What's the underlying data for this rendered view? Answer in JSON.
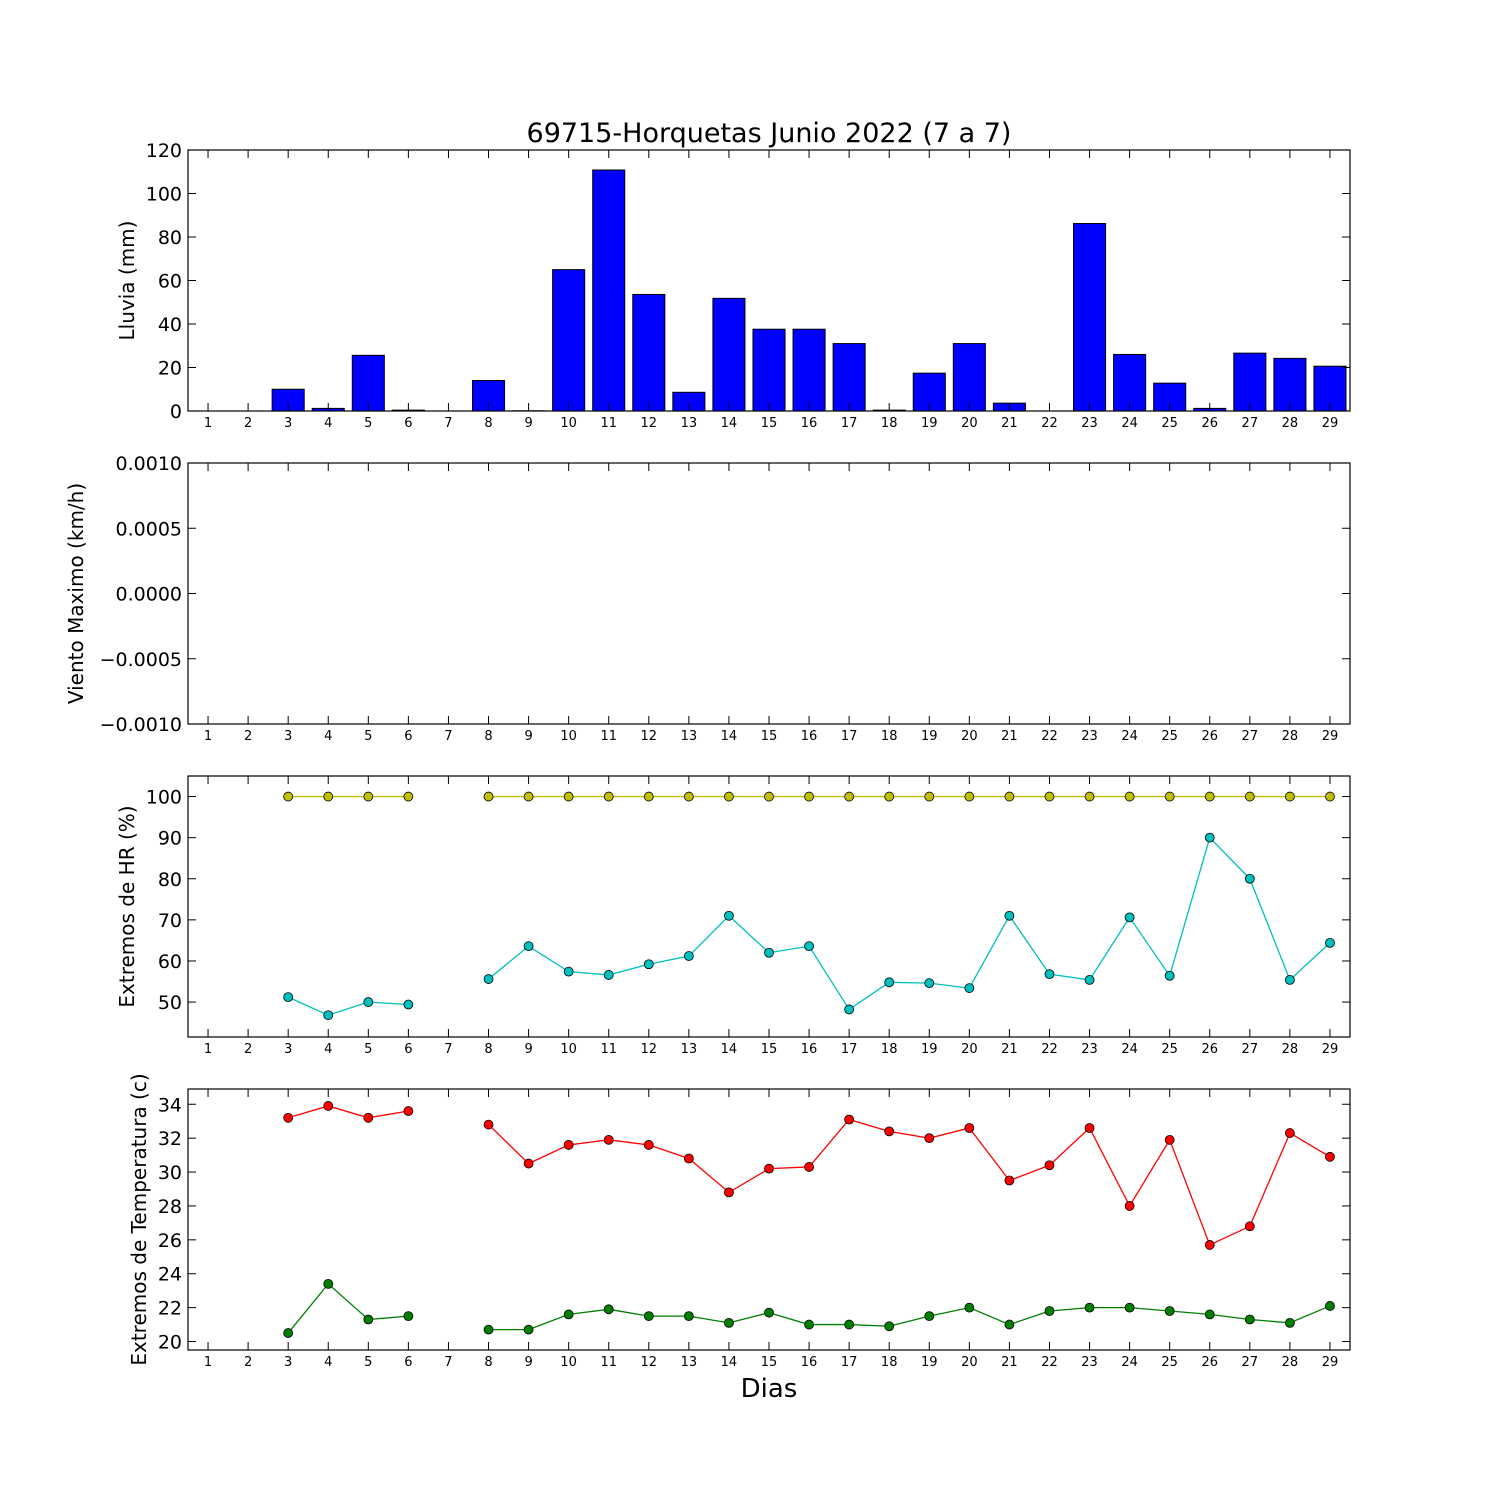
{
  "figure": {
    "title": "69715-Horquetas Junio 2022  (7 a 7)",
    "xlabel": "Dias"
  },
  "chart_data": [
    {
      "type": "bar",
      "ylabel": "Lluvia (mm)",
      "ylim": [
        0,
        120
      ],
      "yticks": [
        0,
        20,
        40,
        60,
        80,
        100,
        120
      ],
      "ytick_labels": [
        "0",
        "20",
        "40",
        "60",
        "80",
        "100",
        "120"
      ],
      "x": [
        1,
        2,
        3,
        4,
        5,
        6,
        7,
        8,
        9,
        10,
        11,
        12,
        13,
        14,
        15,
        16,
        17,
        18,
        19,
        20,
        21,
        22,
        23,
        24,
        25,
        26,
        27,
        28,
        29
      ],
      "color": "#0000ff",
      "values": [
        0,
        0,
        10,
        1.2,
        25.6,
        0.4,
        0,
        14,
        0.1,
        65,
        110.8,
        53.6,
        8.6,
        51.8,
        37.6,
        37.6,
        31,
        0.4,
        17.4,
        31,
        3.6,
        0,
        86.2,
        26,
        12.8,
        1.2,
        26.6,
        24.2,
        20.6
      ]
    },
    {
      "type": "line",
      "ylabel": "Viento Maximo (km/h)",
      "ylim": [
        -0.001,
        0.001
      ],
      "yticks": [
        -0.001,
        -0.0005,
        0,
        0.0005,
        0.001
      ],
      "ytick_labels": [
        "−0.0010",
        "−0.0005",
        "0.0000",
        "0.0005",
        "0.0010"
      ],
      "x": [
        1,
        2,
        3,
        4,
        5,
        6,
        7,
        8,
        9,
        10,
        11,
        12,
        13,
        14,
        15,
        16,
        17,
        18,
        19,
        20,
        21,
        22,
        23,
        24,
        25,
        26,
        27,
        28,
        29
      ],
      "series": []
    },
    {
      "type": "line",
      "ylabel": "Extremos de HR (%)",
      "ylim": [
        41.5,
        105
      ],
      "yticks": [
        50,
        60,
        70,
        80,
        90,
        100
      ],
      "ytick_labels": [
        "50",
        "60",
        "70",
        "80",
        "90",
        "100"
      ],
      "x": [
        1,
        2,
        3,
        4,
        5,
        6,
        7,
        8,
        9,
        10,
        11,
        12,
        13,
        14,
        15,
        16,
        17,
        18,
        19,
        20,
        21,
        22,
        23,
        24,
        25,
        26,
        27,
        28,
        29
      ],
      "series": [
        {
          "color": "#bfbf00",
          "values": [
            null,
            null,
            100,
            100,
            100,
            100,
            null,
            100,
            100,
            100,
            100,
            100,
            100,
            100,
            100,
            100,
            100,
            100,
            100,
            100,
            100,
            100,
            100,
            100,
            100,
            100,
            100,
            100,
            100
          ]
        },
        {
          "color": "#00bfbf",
          "values": [
            null,
            null,
            51.2,
            46.8,
            50,
            49.4,
            null,
            55.6,
            63.6,
            57.4,
            56.6,
            59.2,
            61.2,
            71,
            62,
            63.6,
            48.2,
            54.8,
            54.6,
            53.4,
            71,
            56.8,
            55.4,
            70.6,
            56.4,
            90,
            80,
            55.4,
            64.4
          ]
        }
      ]
    },
    {
      "type": "line",
      "ylabel": "Extremos de Temperatura (c)",
      "ylim": [
        19.5,
        34.9
      ],
      "yticks": [
        20,
        22,
        24,
        26,
        28,
        30,
        32,
        34
      ],
      "ytick_labels": [
        "20",
        "22",
        "24",
        "26",
        "28",
        "30",
        "32",
        "34"
      ],
      "x": [
        1,
        2,
        3,
        4,
        5,
        6,
        7,
        8,
        9,
        10,
        11,
        12,
        13,
        14,
        15,
        16,
        17,
        18,
        19,
        20,
        21,
        22,
        23,
        24,
        25,
        26,
        27,
        28,
        29
      ],
      "series": [
        {
          "color": "#ff0000",
          "values": [
            null,
            null,
            33.2,
            33.9,
            33.2,
            33.6,
            null,
            32.8,
            30.5,
            31.6,
            31.9,
            31.6,
            30.8,
            28.8,
            30.2,
            30.3,
            33.1,
            32.4,
            32,
            32.6,
            29.5,
            30.4,
            32.6,
            28,
            31.9,
            25.7,
            26.8,
            32.3,
            30.9
          ]
        },
        {
          "color": "#007f00",
          "values": [
            null,
            null,
            20.5,
            23.4,
            21.3,
            21.5,
            null,
            20.7,
            20.7,
            21.6,
            21.9,
            21.5,
            21.5,
            21.1,
            21.7,
            21,
            21,
            20.9,
            21.5,
            22,
            21,
            21.8,
            22,
            22,
            21.8,
            21.6,
            21.3,
            21.1,
            22.1
          ]
        }
      ]
    }
  ]
}
